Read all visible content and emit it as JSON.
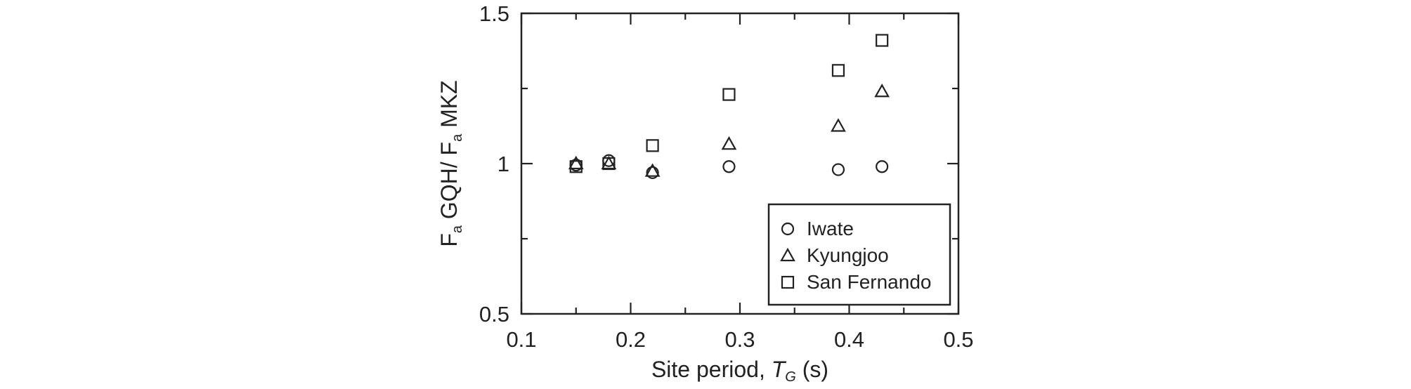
{
  "chart_data": {
    "type": "scatter",
    "xlabel": {
      "prefix": "Site period, ",
      "symbol": "T",
      "subscript": "G",
      "suffix": " (s)"
    },
    "ylabel": {
      "f1": "F",
      "sub1": "a",
      "mid": " GQH/ ",
      "f2": "F",
      "sub2": "a",
      "end": " MKZ"
    },
    "xlim": [
      0.1,
      0.5
    ],
    "ylim": [
      0.5,
      1.5
    ],
    "xticks": [
      0.1,
      0.2,
      0.3,
      0.4,
      0.5
    ],
    "xtick_labels": [
      "0.1",
      "0.2",
      "0.3",
      "0.4",
      "0.5"
    ],
    "yticks": [
      0.5,
      1.0,
      1.5
    ],
    "ytick_labels": [
      "0.5",
      "1",
      "1.5"
    ],
    "grid": false,
    "legend_position": "bottom-right",
    "series": [
      {
        "name": "Iwate",
        "marker": "circle",
        "x": [
          0.15,
          0.18,
          0.22,
          0.29,
          0.39,
          0.43
        ],
        "y": [
          0.995,
          1.01,
          0.97,
          0.99,
          0.98,
          0.99
        ]
      },
      {
        "name": "Kyungjoo",
        "marker": "triangle",
        "x": [
          0.15,
          0.18,
          0.22,
          0.29,
          0.39,
          0.43
        ],
        "y": [
          1.0,
          1.0,
          0.975,
          1.065,
          1.125,
          1.24
        ]
      },
      {
        "name": "San Fernando",
        "marker": "square",
        "x": [
          0.15,
          0.18,
          0.22,
          0.29,
          0.39,
          0.43
        ],
        "y": [
          0.99,
          1.0,
          1.06,
          1.23,
          1.31,
          1.41
        ]
      }
    ]
  }
}
